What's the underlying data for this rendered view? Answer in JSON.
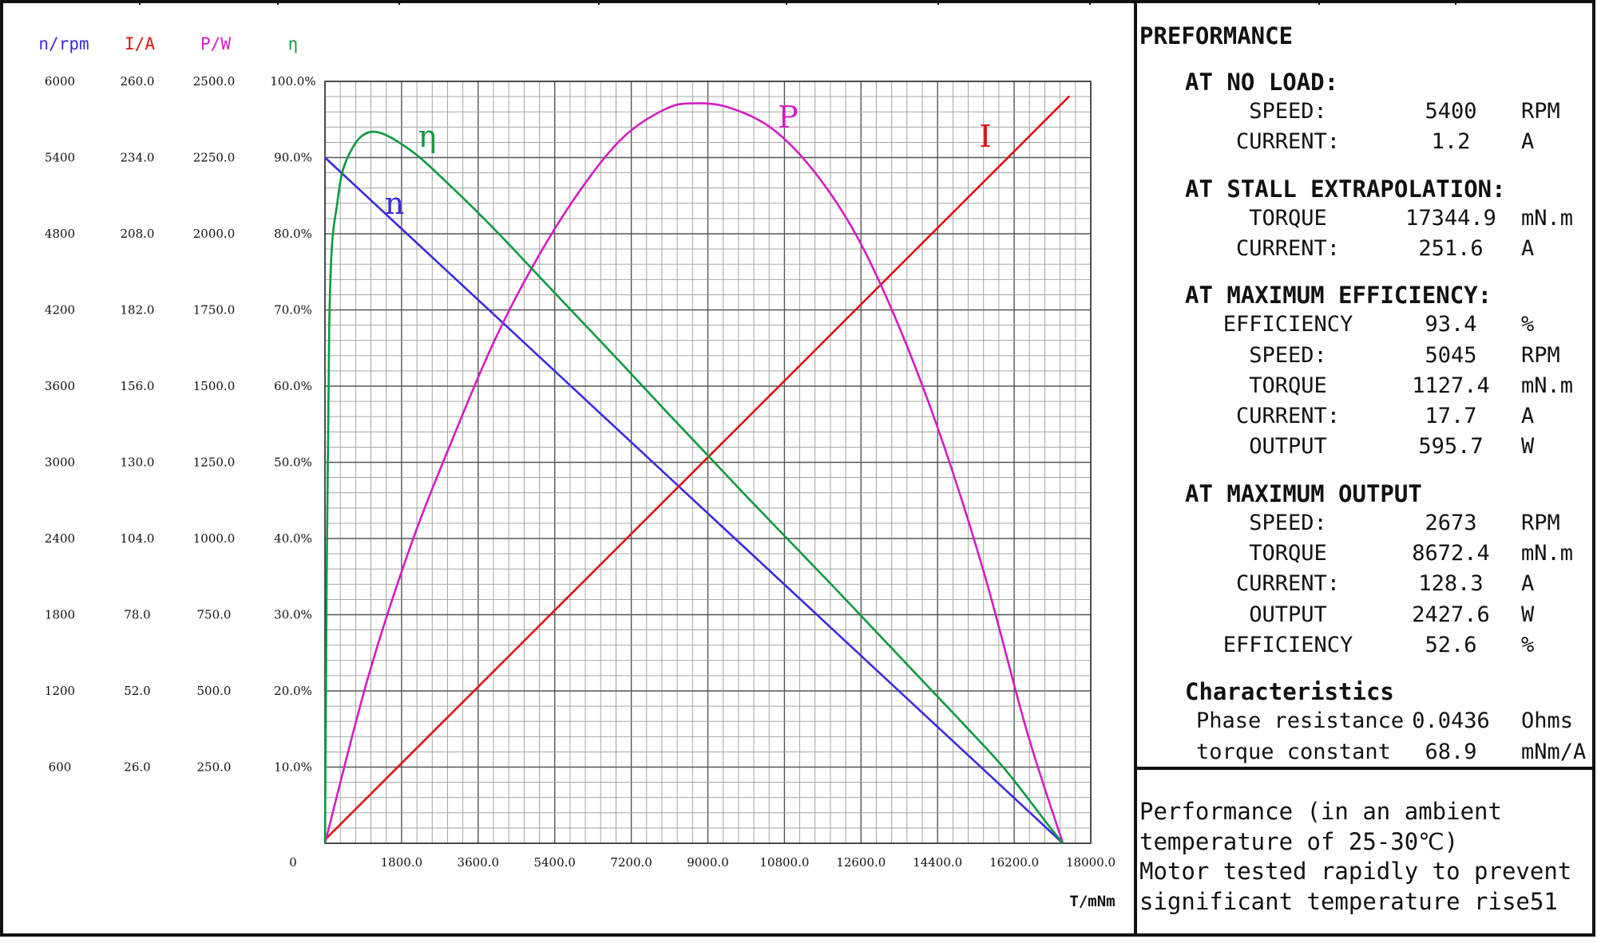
{
  "colors": {
    "speed": "#3a2be0",
    "current": "#e01010",
    "power": "#d41cc4",
    "efficiency": "#0a9a40",
    "grid_minor": "#9a9a9a",
    "grid_major": "#555555",
    "frame": "#111111"
  },
  "axis_headers": {
    "speed": "n/rpm",
    "current": "I/A",
    "power": "P/W",
    "efficiency": "η"
  },
  "curve_labels": {
    "speed": "n",
    "efficiency": "η",
    "power": "P",
    "current": "I"
  },
  "chart_data": {
    "type": "line",
    "xlabel": "T/mNm",
    "xlim": [
      0,
      18000
    ],
    "x_ticks": [
      "0",
      "1800.0",
      "3600.0",
      "5400.0",
      "7200.0",
      "9000.0",
      "10800.0",
      "12600.0",
      "14400.0",
      "16200.0",
      "18000.0"
    ],
    "y_axes": {
      "speed": {
        "label": "n/rpm",
        "lim": [
          0,
          6000
        ],
        "ticks": [
          "600",
          "1200",
          "1800",
          "2400",
          "3000",
          "3600",
          "4200",
          "4800",
          "5400",
          "6000"
        ]
      },
      "current": {
        "label": "I/A",
        "lim": [
          0,
          260
        ],
        "ticks": [
          "26.0",
          "52.0",
          "78.0",
          "104.0",
          "130.0",
          "156.0",
          "182.0",
          "208.0",
          "234.0",
          "260.0"
        ]
      },
      "power": {
        "label": "P/W",
        "lim": [
          0,
          2500
        ],
        "ticks": [
          "250.0",
          "500.0",
          "750.0",
          "1000.0",
          "1250.0",
          "1500.0",
          "1750.0",
          "2000.0",
          "2250.0",
          "2500.0"
        ]
      },
      "efficiency": {
        "label": "η",
        "lim": [
          0,
          100
        ],
        "ticks": [
          "10.0%",
          "20.0%",
          "30.0%",
          "40.0%",
          "50.0%",
          "60.0%",
          "70.0%",
          "80.0%",
          "90.0%",
          "100.0%"
        ]
      }
    },
    "series": [
      {
        "name": "n",
        "axis": "speed",
        "x": [
          0,
          2000,
          4000,
          6000,
          8000,
          10000,
          12000,
          14000,
          16000,
          17344.9
        ],
        "y": [
          5400,
          4777,
          4155,
          3532,
          2909,
          2287,
          1664,
          1041,
          419,
          0
        ]
      },
      {
        "name": "I",
        "axis": "current",
        "x": [
          0,
          2000,
          4000,
          6000,
          8000,
          10000,
          12000,
          14000,
          16000,
          17500
        ],
        "y": [
          1.2,
          30.2,
          59.2,
          88.2,
          117.2,
          146.2,
          175.2,
          204.2,
          233.2,
          255.0
        ]
      },
      {
        "name": "P",
        "axis": "power",
        "x": [
          0,
          1000,
          2000,
          3000,
          4000,
          5000,
          6000,
          7000,
          8000,
          8672.4,
          9500,
          10500,
          11500,
          12500,
          13500,
          14500,
          15500,
          16500,
          17344.9
        ],
        "y": [
          0,
          538,
          971,
          1327,
          1654,
          1922,
          2143,
          2315,
          2409,
          2428,
          2414,
          2346,
          2204,
          1992,
          1693,
          1324,
          883,
          367,
          0
        ]
      },
      {
        "name": "η",
        "axis": "efficiency",
        "x": [
          0,
          100,
          300,
          600,
          1127.4,
          2000,
          3000,
          4000,
          5000,
          6000,
          7000,
          8000,
          9000,
          10000,
          11000,
          12000,
          13000,
          14000,
          15000,
          16000,
          17000,
          17344.9
        ],
        "y": [
          0,
          68.0,
          84.5,
          90.8,
          93.4,
          91.0,
          86.0,
          80.5,
          74.6,
          68.7,
          62.8,
          56.8,
          50.9,
          45.0,
          39.2,
          33.4,
          27.5,
          21.6,
          15.7,
          9.6,
          2.4,
          0
        ]
      }
    ]
  },
  "performance": {
    "title": "PREFORMANCE",
    "sections": [
      {
        "heading": "AT NO LOAD:",
        "rows": [
          {
            "label": "SPEED:",
            "value": "5400",
            "unit": "RPM"
          },
          {
            "label": "CURRENT:",
            "value": "1.2",
            "unit": "A"
          }
        ]
      },
      {
        "heading": "AT STALL EXTRAPOLATION:",
        "rows": [
          {
            "label": "TORQUE",
            "value": "17344.9",
            "unit": "mN.m"
          },
          {
            "label": "CURRENT:",
            "value": "251.6",
            "unit": "A"
          }
        ]
      },
      {
        "heading": "AT MAXIMUM EFFICIENCY:",
        "rows": [
          {
            "label": "EFFICIENCY",
            "value": "93.4",
            "unit": "%"
          },
          {
            "label": "SPEED:",
            "value": "5045",
            "unit": "RPM"
          },
          {
            "label": "TORQUE",
            "value": "1127.4",
            "unit": "mN.m"
          },
          {
            "label": "CURRENT:",
            "value": "17.7",
            "unit": "A"
          },
          {
            "label": "OUTPUT",
            "value": "595.7",
            "unit": "W"
          }
        ]
      },
      {
        "heading": "AT MAXIMUM OUTPUT",
        "rows": [
          {
            "label": "SPEED:",
            "value": "2673",
            "unit": "RPM"
          },
          {
            "label": "TORQUE",
            "value": "8672.4",
            "unit": "mN.m"
          },
          {
            "label": "CURRENT:",
            "value": "128.3",
            "unit": "A"
          },
          {
            "label": "OUTPUT",
            "value": "2427.6",
            "unit": "W"
          },
          {
            "label": "EFFICIENCY",
            "value": "52.6",
            "unit": "%"
          }
        ]
      },
      {
        "heading": "Characteristics",
        "rows": [
          {
            "label": "Phase resistance",
            "value": "0.0436",
            "unit": "Ohms"
          },
          {
            "label": "torque constant",
            "value": "68.9",
            "unit": "mNm/A"
          }
        ]
      }
    ]
  },
  "notes": {
    "line1": "Performance (in an ambient",
    "line2": "temperature of 25-30℃)",
    "line3": "Motor tested rapidly to prevent",
    "line4": "significant temperature rise51"
  }
}
